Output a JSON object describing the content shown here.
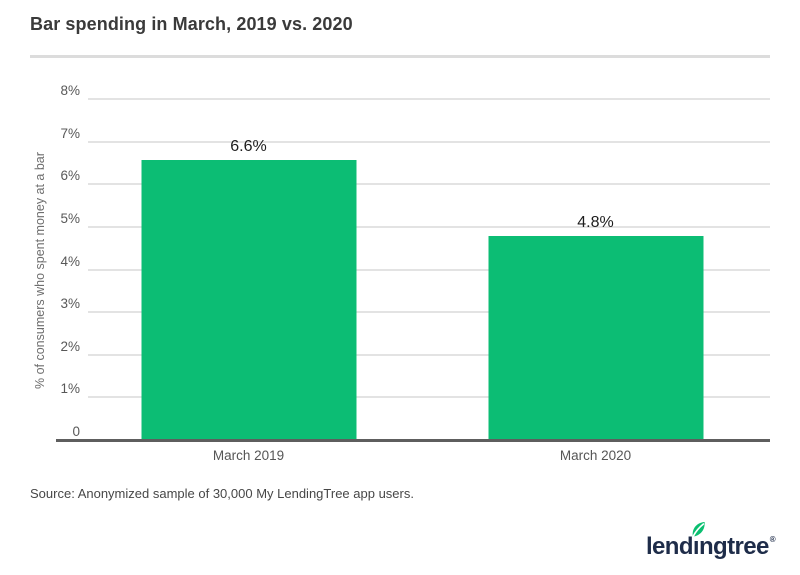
{
  "header": {
    "title": "Bar spending in March, 2019 vs. 2020"
  },
  "chart_data": {
    "type": "bar",
    "title": "Bar spending in March, 2019 vs. 2020",
    "categories": [
      "March 2019",
      "March 2020"
    ],
    "values": [
      6.6,
      4.8
    ],
    "value_labels": [
      "6.6%",
      "4.8%"
    ],
    "xlabel": "",
    "ylabel": "% of consumers who spent money at a bar",
    "ylim": [
      0,
      8
    ],
    "yticks": [
      "0",
      "1%",
      "2%",
      "3%",
      "4%",
      "5%",
      "6%",
      "7%",
      "8%"
    ],
    "grid": true,
    "legend": "none",
    "bar_color": "#0cbd74"
  },
  "footer": {
    "source": "Source: Anonymized sample of 30,000 My LendingTree app users.",
    "logo": {
      "brand": "lendingtree",
      "part1": "lend",
      "dotless_i": "ı",
      "part2": "ngtree",
      "registered": "®"
    }
  },
  "colors": {
    "bar_green": "#0cbd74",
    "leaf_green": "#0abf70",
    "logo_navy": "#1e2c49",
    "gridline": "#e3e3e3",
    "baseline": "#5e5e5e",
    "divider": "#dcdcdc",
    "title_text": "#3a3a3a",
    "tick_text": "#585858",
    "background": "#ffffff"
  }
}
